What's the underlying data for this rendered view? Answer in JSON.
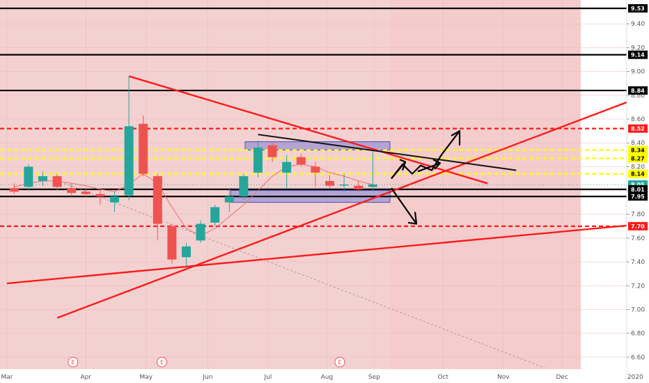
{
  "chart_data": {
    "type": "candlestick",
    "colors": {
      "up": "#26a69a",
      "down": "#ef5350",
      "projection_zone": "#f4cccc",
      "level": "#000000",
      "red_level": "#ff0000",
      "yellow_level": "#ffff00",
      "box": "#6a6fc9",
      "current": "#26a69a"
    },
    "y_axis": {
      "min": 6.5,
      "max": 9.6,
      "ticks": [
        9.4,
        9.2,
        9.0,
        8.8,
        8.6,
        8.4,
        8.2,
        8.0,
        7.8,
        7.6,
        7.4,
        7.2,
        7.0,
        6.8,
        6.6
      ]
    },
    "y_tick_labels": [
      "9.40",
      "9.20",
      "9.00",
      "8.80",
      "8.60",
      "8.40",
      "8.20",
      "8.00",
      "7.80",
      "7.60",
      "7.40",
      "7.20",
      "7.00",
      "6.80",
      "6.60"
    ],
    "x_axis": {
      "labels": [
        {
          "text": "Mar",
          "week": 0
        },
        {
          "text": "Apr",
          "week": 5.5
        },
        {
          "text": "May",
          "week": 9.7
        },
        {
          "text": "Jun",
          "week": 14
        },
        {
          "text": "Jul",
          "week": 18.2
        },
        {
          "text": "Aug",
          "week": 22.3
        },
        {
          "text": "Sep",
          "week": 25.6
        },
        {
          "text": "Oct",
          "week": 30.4
        },
        {
          "text": "Nov",
          "week": 34.6
        },
        {
          "text": "Dec",
          "week": 38.7
        },
        {
          "text": "2020",
          "week": 43.8
        }
      ]
    },
    "earnings_markers": [
      {
        "text": "E",
        "week": 4.6
      },
      {
        "text": "E",
        "week": 10.8
      },
      {
        "text": "E",
        "week": 23.2
      }
    ],
    "candles": [
      {
        "o": 8.02,
        "h": 8.06,
        "l": 7.97,
        "c": 7.99
      },
      {
        "o": 8.03,
        "h": 8.22,
        "l": 8.0,
        "c": 8.2
      },
      {
        "o": 8.08,
        "h": 8.16,
        "l": 8.04,
        "c": 8.12
      },
      {
        "o": 8.12,
        "h": 8.14,
        "l": 8.0,
        "c": 8.03
      },
      {
        "o": 8.02,
        "h": 8.06,
        "l": 7.95,
        "c": 7.98
      },
      {
        "o": 7.99,
        "h": 8.02,
        "l": 7.94,
        "c": 7.97
      },
      {
        "o": 7.97,
        "h": 8.0,
        "l": 7.88,
        "c": 7.95
      },
      {
        "o": 7.9,
        "h": 7.99,
        "l": 7.82,
        "c": 7.95
      },
      {
        "o": 7.96,
        "h": 8.96,
        "l": 7.92,
        "c": 8.54
      },
      {
        "o": 8.56,
        "h": 8.63,
        "l": 8.12,
        "c": 8.14
      },
      {
        "o": 8.12,
        "h": 8.14,
        "l": 7.58,
        "c": 7.72
      },
      {
        "o": 7.7,
        "h": 7.72,
        "l": 7.38,
        "c": 7.42
      },
      {
        "o": 7.44,
        "h": 7.56,
        "l": 7.36,
        "c": 7.53
      },
      {
        "o": 7.58,
        "h": 7.75,
        "l": 7.56,
        "c": 7.72
      },
      {
        "o": 7.73,
        "h": 7.88,
        "l": 7.7,
        "c": 7.86
      },
      {
        "o": 7.9,
        "h": 8.02,
        "l": 7.82,
        "c": 7.95
      },
      {
        "o": 7.95,
        "h": 8.14,
        "l": 7.92,
        "c": 8.12
      },
      {
        "o": 8.15,
        "h": 8.42,
        "l": 8.11,
        "c": 8.36
      },
      {
        "o": 8.38,
        "h": 8.4,
        "l": 8.24,
        "c": 8.28
      },
      {
        "o": 8.15,
        "h": 8.3,
        "l": 8.02,
        "c": 8.24
      },
      {
        "o": 8.28,
        "h": 8.31,
        "l": 8.2,
        "c": 8.22
      },
      {
        "o": 8.2,
        "h": 8.24,
        "l": 8.03,
        "c": 8.15
      },
      {
        "o": 8.08,
        "h": 8.13,
        "l": 8.02,
        "c": 8.04
      },
      {
        "o": 8.05,
        "h": 8.14,
        "l": 7.98,
        "c": 8.05
      },
      {
        "o": 8.04,
        "h": 8.08,
        "l": 7.99,
        "c": 8.01
      },
      {
        "o": 8.03,
        "h": 8.33,
        "l": 8.0,
        "c": 8.05
      }
    ],
    "moving_average": [
      8.03,
      8.06,
      8.08,
      8.08,
      8.06,
      8.04,
      8.01,
      7.99,
      8.05,
      8.14,
      8.06,
      7.86,
      7.68,
      7.62,
      7.68,
      7.78,
      7.88,
      8.0,
      8.12,
      8.2,
      8.22,
      8.2,
      8.15,
      8.12,
      8.08,
      8.05
    ],
    "levels": [
      {
        "value": 9.53,
        "label": "9.53",
        "style": "black"
      },
      {
        "value": 9.14,
        "label": "9.14",
        "style": "black"
      },
      {
        "value": 8.84,
        "label": "8.84",
        "style": "black"
      },
      {
        "value": 8.52,
        "label": "8.52",
        "style": "red-dashed"
      },
      {
        "value": 8.34,
        "label": "8.34",
        "style": "yellow-dashed"
      },
      {
        "value": 8.27,
        "label": "8.27",
        "style": "yellow-dashed"
      },
      {
        "value": 8.14,
        "label": "8.14",
        "style": "yellow-dashed"
      },
      {
        "value": 8.05,
        "label": "8.05",
        "style": "current"
      },
      {
        "value": 8.01,
        "label": "8.01",
        "style": "black"
      },
      {
        "value": 7.95,
        "label": "7.95",
        "style": "black"
      },
      {
        "value": 7.7,
        "label": "7.70",
        "style": "red-dashed"
      }
    ],
    "trendlines": [
      {
        "from": {
          "week": 8.5,
          "price": 8.96
        },
        "to": {
          "week": 33.5,
          "price": 8.06
        },
        "color": "red"
      },
      {
        "from": {
          "week": 3.5,
          "price": 6.93
        },
        "to": {
          "week": 44.5,
          "price": 8.8
        },
        "color": "red"
      },
      {
        "from": {
          "week": 0,
          "price": 7.22
        },
        "to": {
          "week": 44.5,
          "price": 7.72
        },
        "color": "red"
      },
      {
        "from": {
          "week": 17.5,
          "price": 8.47
        },
        "to": {
          "week": 35.5,
          "price": 8.17
        },
        "color": "black"
      },
      {
        "from": {
          "week": 4,
          "price": 8.06
        },
        "to": {
          "week": 37.5,
          "price": 6.51
        },
        "color": "gray-dashed"
      }
    ],
    "boxes": [
      {
        "x0": 16.6,
        "x1": 26.7,
        "p0": 8.41,
        "p1": 8.34
      },
      {
        "x0": 15.6,
        "x1": 26.7,
        "p0": 8.0,
        "p1": 7.9
      }
    ],
    "projection_start_week": 26.7,
    "projection_end_week": 40
  }
}
